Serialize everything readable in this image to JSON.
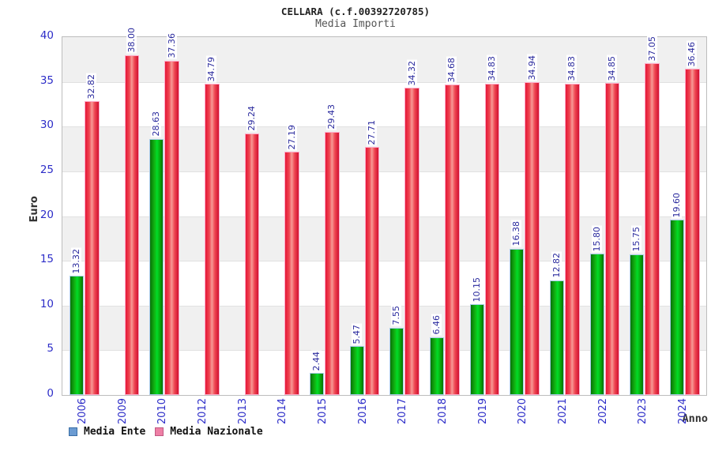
{
  "chart_data": {
    "type": "bar",
    "title": "CELLARA (c.f.00392720785)",
    "subtitle": "Media Importi",
    "ylabel": "Euro",
    "xlabel": "Anno",
    "ylim": [
      0,
      40
    ],
    "yticks": [
      0,
      5,
      10,
      15,
      20,
      25,
      30,
      35,
      40
    ],
    "grid": "alternating horizontal bands every 5 units, light gray / white",
    "legend_position": "bottom-left",
    "value_labels": "rotated 90deg CCW above each bar",
    "categories": [
      "2006",
      "2009",
      "2010",
      "2012",
      "2013",
      "2014",
      "2015",
      "2016",
      "2017",
      "2018",
      "2019",
      "2020",
      "2021",
      "2022",
      "2023",
      "2024"
    ],
    "series": [
      {
        "name": "Media Ente",
        "legend_swatch_color": "#6b9bd2",
        "bar_style": "green gradient with light blue outline",
        "values": [
          13.32,
          null,
          28.63,
          null,
          null,
          null,
          2.44,
          5.47,
          7.55,
          6.46,
          10.15,
          16.38,
          12.82,
          15.8,
          15.75,
          19.6
        ],
        "labels": [
          "13.32",
          "",
          "28.63",
          "",
          "",
          "",
          "2.44",
          "5.47",
          "7.55",
          "6.46",
          "10.15",
          "16.38",
          "12.82",
          "15.80",
          "15.75",
          "19.60"
        ]
      },
      {
        "name": "Media Nazionale",
        "legend_swatch_color": "#ee7fa5",
        "bar_style": "red gradient with pink outline",
        "values": [
          32.82,
          38.0,
          37.36,
          34.79,
          29.24,
          27.19,
          29.43,
          27.71,
          34.32,
          34.68,
          34.83,
          34.94,
          34.83,
          34.85,
          37.05,
          36.46
        ],
        "labels": [
          "32.82",
          "38.00",
          "37.36",
          "34.79",
          "29.24",
          "27.19",
          "29.43",
          "27.71",
          "34.32",
          "34.68",
          "34.83",
          "34.94",
          "34.83",
          "34.85",
          "37.05",
          "36.46"
        ]
      }
    ]
  },
  "colors": {
    "value_label": "#2b2b9e",
    "tick_label": "#2d2dc8",
    "band_gray": "#f0f0f0",
    "band_white": "#ffffff",
    "ente_gradient": [
      "#077207",
      "#12b412",
      "#00dc28",
      "#0aa30a",
      "#077207"
    ],
    "ente_border": "#a8cce8",
    "nazionale_gradient": [
      "#e51837",
      "#ef4652",
      "#f79a96",
      "#ef4652",
      "#cf1130"
    ],
    "nazionale_border": "#ffaac8"
  }
}
